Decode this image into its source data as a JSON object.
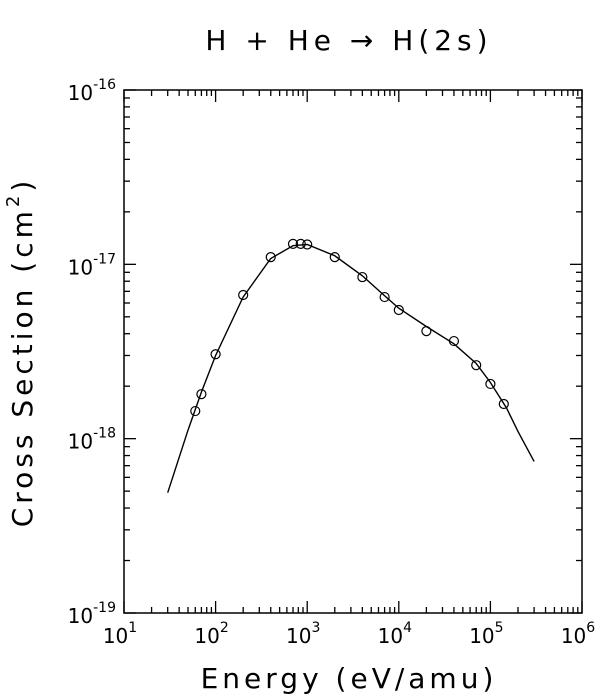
{
  "chart_data": {
    "type": "scatter",
    "title": "H + He → H(2s)",
    "x_label": "Energy (eV/amu)",
    "y_label": [
      "Cross Section (cm",
      "2",
      ")"
    ],
    "log_x": true,
    "log_y": true,
    "xlim": [
      10,
      1000000
    ],
    "ylim": [
      1e-19,
      1e-16
    ],
    "xticks": [
      {
        "value": 10,
        "label": "10",
        "exponent": "1"
      },
      {
        "value": 100,
        "label": "10",
        "exponent": "2"
      },
      {
        "value": 1000,
        "label": "10",
        "exponent": "3"
      },
      {
        "value": 10000,
        "label": "10",
        "exponent": "4"
      },
      {
        "value": 100000,
        "label": "10",
        "exponent": "5"
      },
      {
        "value": 1000000,
        "label": "10",
        "exponent": "6"
      }
    ],
    "yticks": [
      {
        "value": 1e-19,
        "label": "10",
        "exponent": "-19"
      },
      {
        "value": 1e-18,
        "label": "10",
        "exponent": "-18"
      },
      {
        "value": 1e-17,
        "label": "10",
        "exponent": "-17"
      },
      {
        "value": 1e-16,
        "label": "10",
        "exponent": "-16"
      }
    ],
    "points": {
      "color": "#000000",
      "x": [
        60,
        70,
        100,
        200,
        400,
        700,
        850,
        1000,
        2000,
        4000,
        7000,
        10000,
        20000,
        40000,
        70000,
        100000,
        140000
      ],
      "y": [
        1.44e-18,
        1.8e-18,
        3.05e-18,
        6.67e-18,
        1.1e-17,
        1.31e-17,
        1.31e-17,
        1.3e-17,
        1.1e-17,
        8.45e-18,
        6.49e-18,
        5.47e-18,
        4.14e-18,
        3.63e-18,
        2.64e-18,
        2.06e-18,
        1.58e-18
      ]
    },
    "fit": {
      "color": "#000000",
      "x": [
        30,
        50,
        70,
        100,
        200,
        400,
        700,
        1000,
        2000,
        4000,
        7000,
        10000,
        20000,
        40000,
        70000,
        100000,
        150000,
        200000,
        300000
      ],
      "y": [
        4.9e-19,
        1.12e-18,
        1.85e-18,
        3e-18,
        6.5e-18,
        1.08e-17,
        1.28e-17,
        1.3e-17,
        1.12e-17,
        8.6e-18,
        6.6e-18,
        5.6e-18,
        4.4e-18,
        3.5e-18,
        2.7e-18,
        2.1e-18,
        1.5e-18,
        1.1e-18,
        7.4e-19
      ]
    }
  }
}
